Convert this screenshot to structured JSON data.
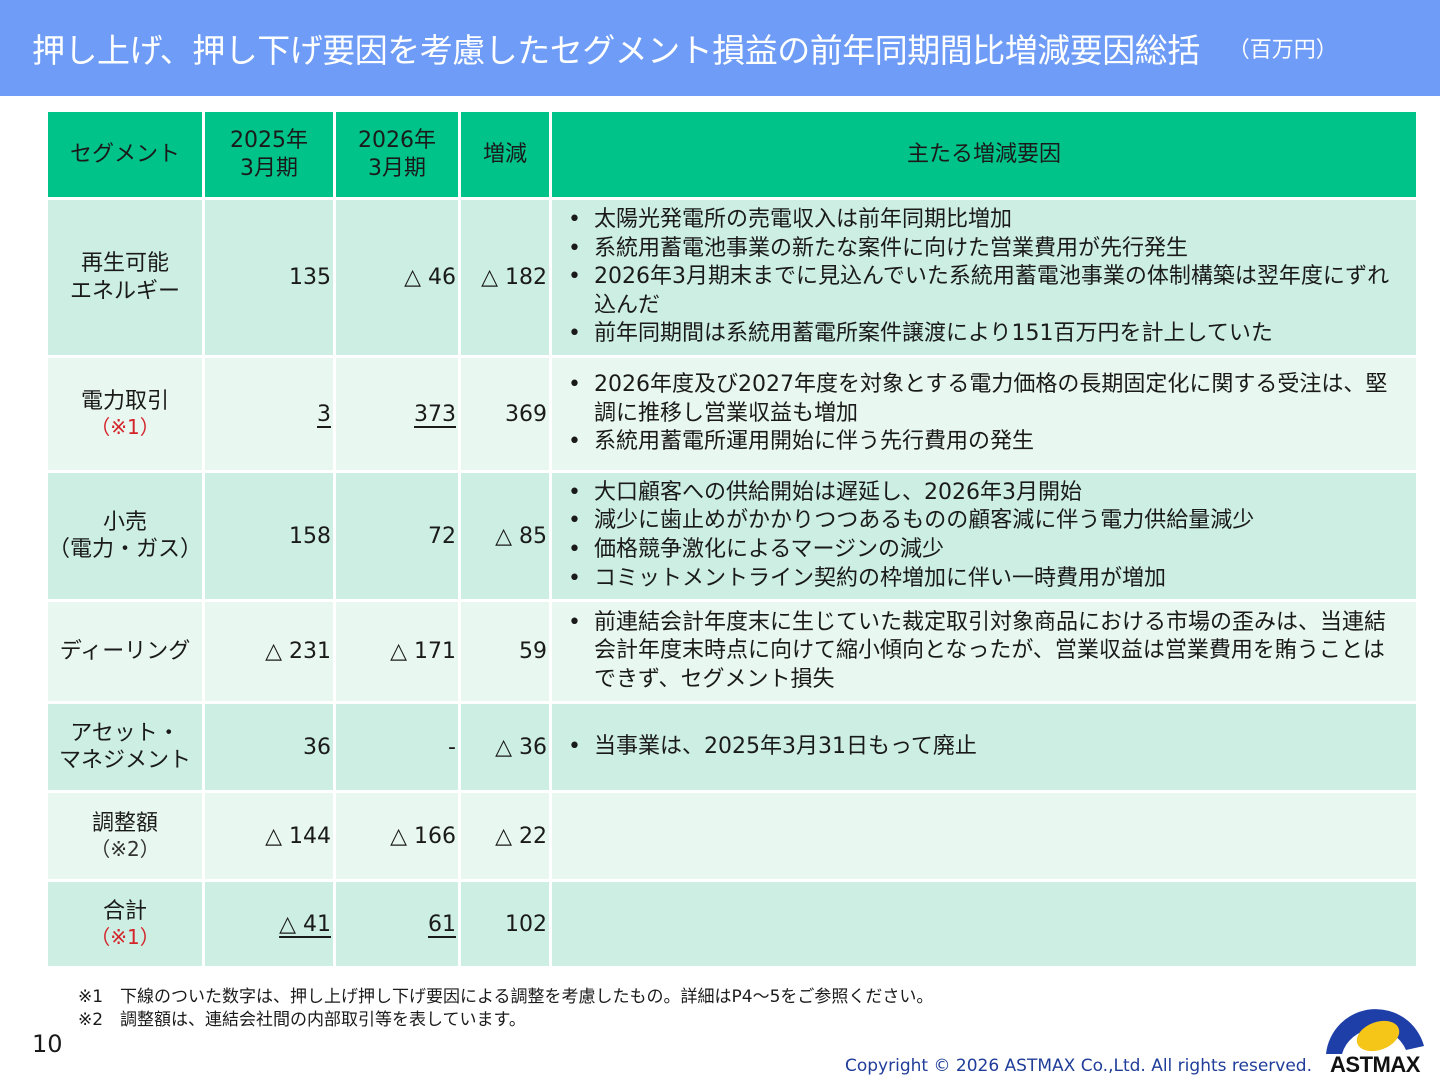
{
  "title": {
    "main": "押し上げ、押し下げ要因を考慮したセグメント損益の前年同期間比増減要因総括",
    "unit": "（百万円）"
  },
  "table": {
    "headers": {
      "segment": "セグメント",
      "fy2025_line1": "2025年",
      "fy2025_line2": "3月期",
      "fy2026_line1": "2026年",
      "fy2026_line2": "3月期",
      "change": "増減",
      "factors": "主たる増減要因"
    },
    "rows": [
      {
        "name_line1": "再生可能",
        "name_line2": "エネルギー",
        "note": "",
        "fy2025": "135",
        "fy2026": "△ 46",
        "change": "△ 182",
        "reasons": [
          "太陽光発電所の売電収入は前年同期比増加",
          "系統用蓄電池事業の新たな案件に向けた営業費用が先行発生",
          "2026年3月期末までに見込んでいた系統用蓄電池事業の体制構築は翌年度にずれ込んだ",
          "前年同期間は系統用蓄電所案件譲渡により151百万円を計上していた"
        ]
      },
      {
        "name_line1": "電力取引",
        "name_line2": "",
        "note": "（※1）",
        "fy2025": "3",
        "fy2026": "373",
        "change": "369",
        "reasons": [
          "2026年度及び2027年度を対象とする電力価格の長期固定化に関する受注は、堅調に推移し営業収益も増加",
          "系統用蓄電所運用開始に伴う先行費用の発生"
        ]
      },
      {
        "name_line1": "小売",
        "name_line2": "（電力・ガス）",
        "note": "",
        "fy2025": "158",
        "fy2026": "72",
        "change": "△ 85",
        "reasons": [
          "大口顧客への供給開始は遅延し、2026年3月開始",
          "減少に歯止めがかかりつつあるものの顧客減に伴う電力供給量減少",
          "価格競争激化によるマージンの減少",
          "コミットメントライン契約の枠増加に伴い一時費用が増加"
        ]
      },
      {
        "name_line1": "ディーリング",
        "name_line2": "",
        "note": "",
        "fy2025": "△ 231",
        "fy2026": "△ 171",
        "change": "59",
        "reasons": [
          "前連結会計年度末に生じていた裁定取引対象商品における市場の歪みは、当連結会計年度末時点に向けて縮小傾向となったが、営業収益は営業費用を賄うことはできず、セグメント損失"
        ]
      },
      {
        "name_line1": "アセット・",
        "name_line2": "マネジメント",
        "note": "",
        "fy2025": "36",
        "fy2026": "-",
        "change": "△ 36",
        "reasons": [
          "当事業は、2025年3月31日もって廃止"
        ]
      },
      {
        "name_line1": "調整額",
        "name_line2": "",
        "note": "（※2）",
        "fy2025": "△ 144",
        "fy2026": "△ 166",
        "change": "△ 22",
        "reasons": []
      },
      {
        "name_line1": "合計",
        "name_line2": "",
        "note": "（※1）",
        "fy2025": "△ 41",
        "fy2026": "61",
        "change": "102",
        "reasons": []
      }
    ]
  },
  "footnotes": {
    "note1": "※1　下線のついた数字は、押し上げ押し下げ要因による調整を考慮したもの。詳細はP4～5をご参照ください。",
    "note2": "※2　調整額は、連結会社間の内部取引等を表しています。"
  },
  "page_number": "10",
  "copyright": "Copyright © 2026 ASTMAX Co.,Ltd. All rights reserved.",
  "logo": {
    "text": "ASTMAX",
    "colors": {
      "arc_blue": "#1f3fa8",
      "disc_yellow": "#f5c518"
    }
  },
  "colors": {
    "title_bar": "#6e9cf6",
    "header": "#00c389",
    "row_dark": "#cdeee2",
    "row_light": "#e8f7f0",
    "note_red": "#d4242a"
  }
}
